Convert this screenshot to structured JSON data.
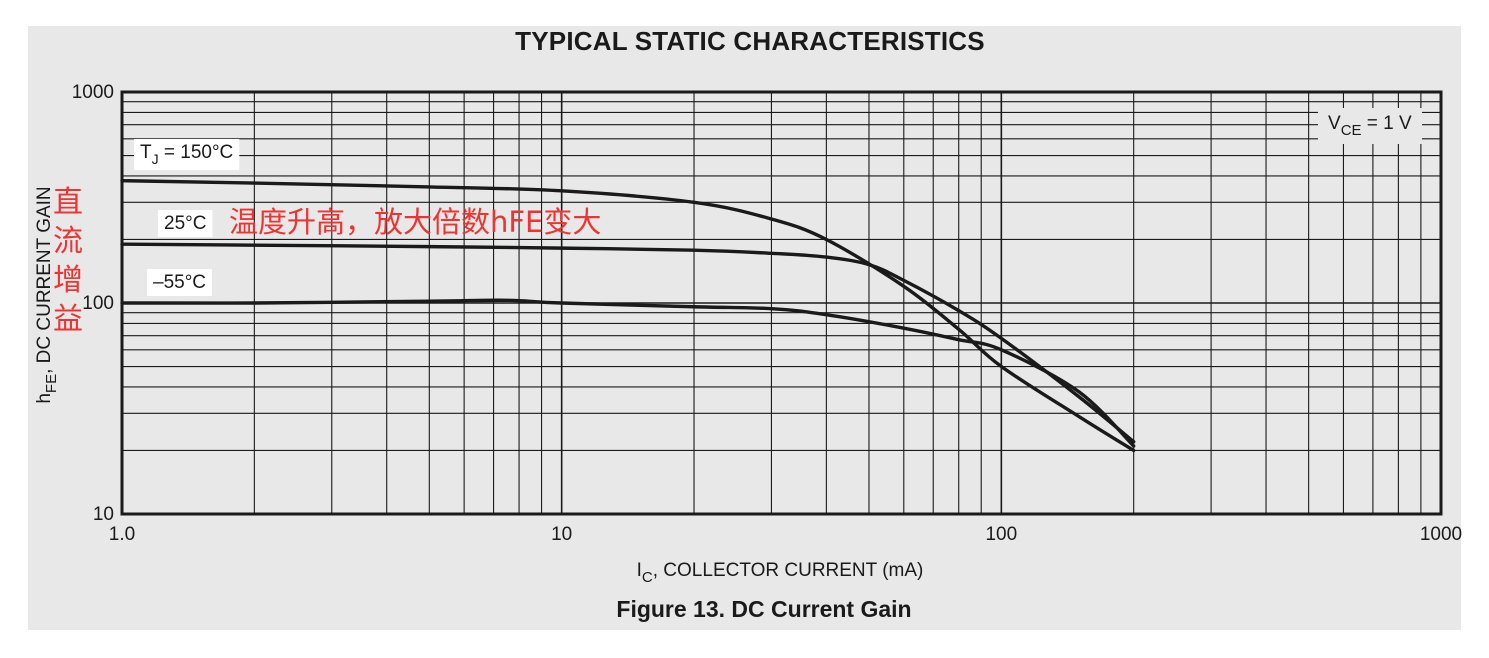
{
  "chart_title": "TYPICAL STATIC CHARACTERISTICS",
  "figure_caption": "Figure 13. DC Current Gain",
  "colors": {
    "panel": "#e8e8e8",
    "line": "#1a1a1a",
    "annotation": "#ee3333"
  },
  "chart_data": {
    "type": "line",
    "x_scale": "log",
    "y_scale": "log",
    "xlim": [
      1,
      1000
    ],
    "ylim": [
      10,
      1000
    ],
    "x_ticks": [
      "1.0",
      "10",
      "100",
      "1000"
    ],
    "y_ticks": [
      "10",
      "100",
      "1000"
    ],
    "xlabel": {
      "main": "I",
      "sub": "C",
      "rest": ", COLLECTOR CURRENT (mA)"
    },
    "ylabel": {
      "main": "h",
      "sub": "FE",
      "rest": ", DC CURRENT GAIN"
    },
    "condition": {
      "main": "V",
      "sub": "CE",
      "rest": " = 1 V"
    },
    "series": [
      {
        "name": "T_J = 150°C",
        "x": [
          1,
          2,
          5,
          10,
          20,
          30,
          40,
          60,
          80,
          100,
          150,
          200
        ],
        "y": [
          380,
          370,
          355,
          340,
          300,
          250,
          200,
          120,
          75,
          50,
          29,
          20
        ]
      },
      {
        "name": "25°C",
        "x": [
          1,
          2,
          5,
          10,
          20,
          30,
          40,
          50,
          60,
          80,
          100,
          150,
          200
        ],
        "y": [
          190,
          188,
          185,
          182,
          178,
          172,
          165,
          152,
          128,
          92,
          68,
          36,
          22
        ]
      },
      {
        "name": "–55°C",
        "x": [
          1,
          2,
          5,
          7.5,
          10,
          20,
          30,
          40,
          60,
          80,
          100,
          150,
          200
        ],
        "y": [
          100,
          100,
          102,
          103,
          100,
          96,
          94,
          88,
          76,
          67,
          60,
          38,
          21
        ]
      }
    ],
    "curve_labels": [
      {
        "main": "T",
        "sub": "J",
        "rest": " = 150°C"
      },
      {
        "main": "25°C",
        "sub": "",
        "rest": ""
      },
      {
        "main": "–55°C",
        "sub": "",
        "rest": ""
      }
    ],
    "annotations": {
      "y_axis_note": "直流增益",
      "body_note": "温度升高，放大倍数hFE变大"
    }
  }
}
